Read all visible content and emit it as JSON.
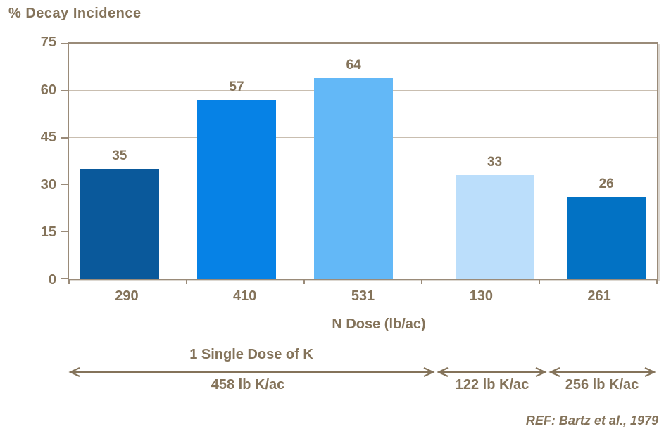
{
  "title": "% Decay Incidence",
  "chart_data": {
    "type": "bar",
    "title": "% Decay Incidence",
    "categories": [
      "290",
      "410",
      "531",
      "130",
      "261"
    ],
    "values": [
      35,
      57,
      64,
      33,
      26
    ],
    "bar_colors": [
      "#0A599B",
      "#0682E6",
      "#63B8F7",
      "#BBDEFB",
      "#0272C4"
    ],
    "xlabel": "N Dose (lb/ac)",
    "ylabel": "% Decay Incidence",
    "ylim": [
      0,
      75
    ],
    "yticks": [
      0,
      15,
      30,
      45,
      60,
      75
    ],
    "grid": "horizontal",
    "legend": "none"
  },
  "annotations": {
    "groups": [
      {
        "label": "1 Single Dose of K",
        "amount": "458 lb K/ac",
        "spans": [
          "290",
          "410",
          "531"
        ]
      },
      {
        "label": "",
        "amount": "122 lb K/ac",
        "spans": [
          "130"
        ]
      },
      {
        "label": "",
        "amount": "256 lb K/ac",
        "spans": [
          "261"
        ]
      }
    ]
  },
  "reference": "REF: Bartz et al., 1979",
  "colors": {
    "text": "#84735A",
    "gridline": "#C9BEB0",
    "axis": "#9A8B79",
    "background": "#FFFFFF"
  }
}
